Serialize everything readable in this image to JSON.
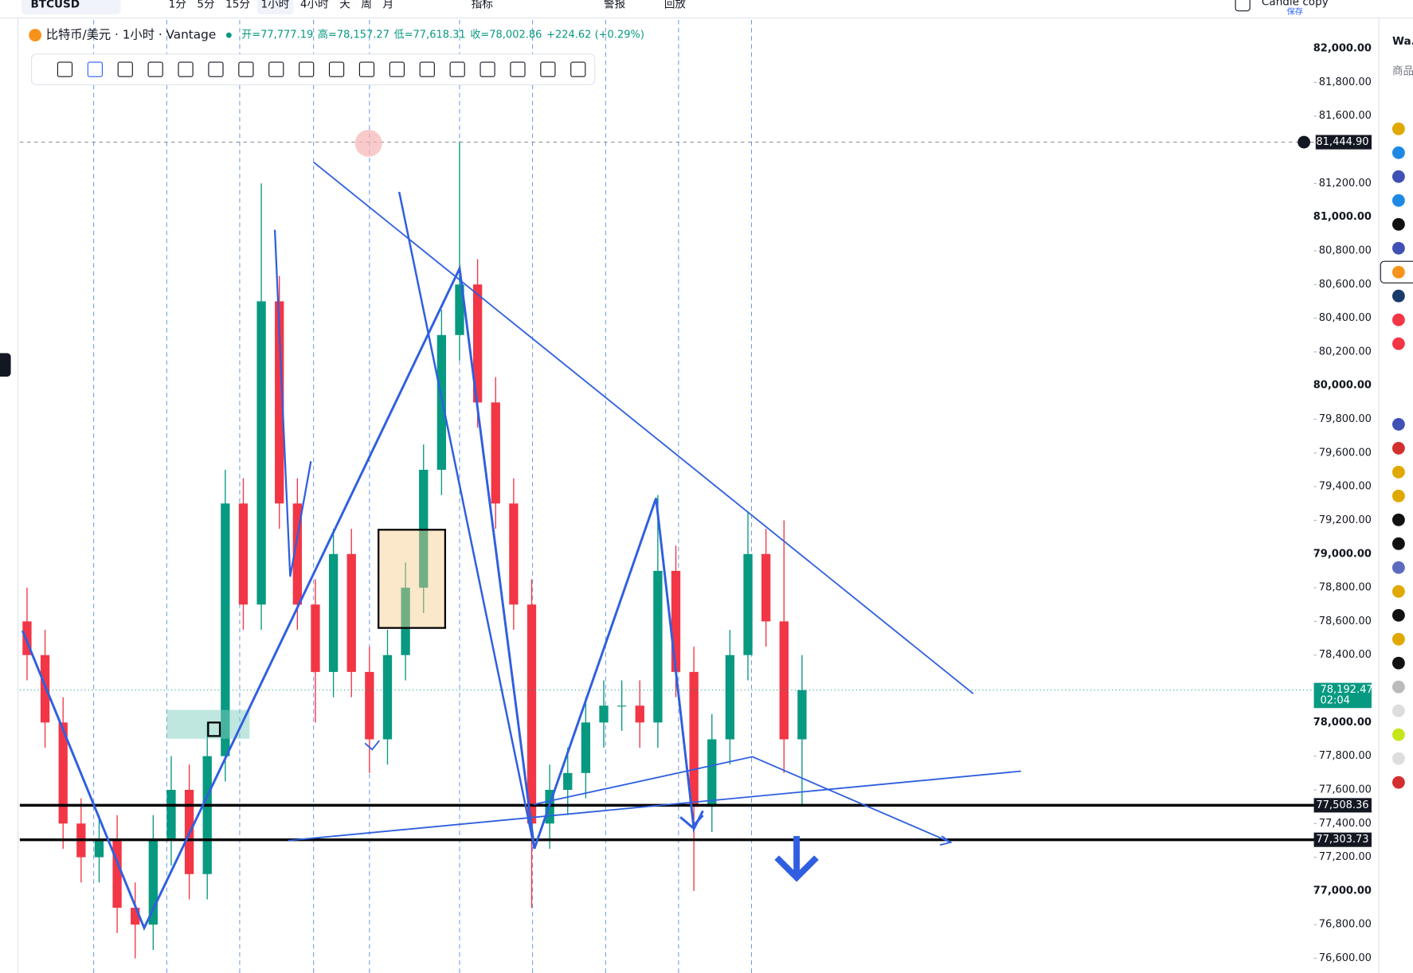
{
  "toolbar": {
    "symbol": "BTCUSD",
    "intervals": [
      "1分",
      "5分",
      "15分",
      "1小时",
      "4小时",
      "天",
      "周",
      "月"
    ],
    "indicators": "指标",
    "alerts": "警报",
    "replay": "回放",
    "layout": "Candle copy",
    "save": "保存"
  },
  "legend": {
    "title": "比特币/美元 · 1小时 · Vantage",
    "fields": [
      "开=77,777.19",
      "高=78,157.27",
      "低=77,618.31",
      "收=78,002.86"
    ],
    "change": "+224.62 (+0.29%)"
  },
  "watchlist": {
    "title": "Wa...",
    "header": "商品"
  },
  "chart_data": {
    "type": "candlestick",
    "ylim": [
      76513,
      82171
    ],
    "yticks": [
      {
        "value": 76600,
        "label": "76,600.00"
      },
      {
        "value": 76800,
        "label": "76,800.00"
      },
      {
        "value": 77000,
        "label": "77,000.00"
      },
      {
        "value": 77200,
        "label": "77,200.00"
      },
      {
        "value": 77400,
        "label": "77,400.00"
      },
      {
        "value": 77600,
        "label": "77,600.00"
      },
      {
        "value": 77800,
        "label": "77,800.00"
      },
      {
        "value": 78000,
        "label": "78,000.00"
      },
      {
        "value": 78400,
        "label": "78,400.00"
      },
      {
        "value": 78600,
        "label": "78,600.00"
      },
      {
        "value": 78800,
        "label": "78,800.00"
      },
      {
        "value": 79000,
        "label": "79,000.00"
      },
      {
        "value": 79200,
        "label": "79,200.00"
      },
      {
        "value": 79400,
        "label": "79,400.00"
      },
      {
        "value": 79600,
        "label": "79,600.00"
      },
      {
        "value": 79800,
        "label": "79,800.00"
      },
      {
        "value": 80000,
        "label": "80,000.00"
      },
      {
        "value": 80200,
        "label": "80,200.00"
      },
      {
        "value": 80400,
        "label": "80,400.00"
      },
      {
        "value": 80600,
        "label": "80,600.00"
      },
      {
        "value": 80800,
        "label": "80,800.00"
      },
      {
        "value": 81000,
        "label": "81,000.00"
      },
      {
        "value": 81200,
        "label": "81,200.00"
      },
      {
        "value": 81600,
        "label": "81,600.00"
      },
      {
        "value": 81800,
        "label": "81,800.00"
      },
      {
        "value": 82000,
        "label": "82,000.00"
      }
    ],
    "up_color": "#089981",
    "down_color": "#f23645",
    "open": [
      78600,
      78400,
      78000,
      77400,
      77200,
      77300,
      76900,
      76800,
      77300,
      77600,
      77100,
      77800,
      79300,
      78700,
      80500,
      79300,
      78700,
      78300,
      79000,
      78300,
      77900,
      78400,
      78800,
      79500,
      80300,
      80600,
      79900,
      79300,
      78700,
      77400,
      77600,
      77700,
      78000,
      78100,
      78100,
      78000,
      78900,
      78300,
      77500,
      77900,
      78400,
      79000,
      78600,
      77900
    ],
    "high": [
      78800,
      78550,
      78150,
      77550,
      77450,
      77450,
      77050,
      77450,
      77800,
      77750,
      78000,
      79500,
      79450,
      81200,
      80650,
      79450,
      78850,
      79150,
      79150,
      78450,
      78550,
      78950,
      79650,
      80450,
      81450,
      80750,
      80050,
      79450,
      78850,
      77750,
      77850,
      78150,
      78250,
      78250,
      78250,
      79350,
      79050,
      78450,
      78050,
      78550,
      79250,
      79150,
      79200,
      78400
    ],
    "low": [
      78250,
      77850,
      77250,
      77050,
      77050,
      76750,
      76600,
      76650,
      77150,
      76950,
      76950,
      77650,
      78550,
      78550,
      79150,
      78550,
      78000,
      78150,
      78150,
      77700,
      77750,
      78250,
      78650,
      79350,
      80150,
      79750,
      79150,
      78550,
      76900,
      77250,
      77450,
      77550,
      77850,
      77950,
      77850,
      77850,
      78150,
      77000,
      77350,
      77750,
      78250,
      78450,
      77700,
      77500
    ],
    "close": [
      78400,
      78000,
      77400,
      77200,
      77300,
      76900,
      76800,
      77300,
      77600,
      77100,
      77800,
      79300,
      78700,
      80500,
      79300,
      78700,
      78300,
      79000,
      78300,
      77900,
      78400,
      78800,
      79500,
      80300,
      80600,
      79900,
      79300,
      78700,
      77400,
      77600,
      77700,
      78000,
      78100,
      78100,
      78000,
      78900,
      78300,
      77500,
      77900,
      78400,
      79000,
      78600,
      77900,
      78192.47
    ],
    "crosshair": {
      "value": 81444.9,
      "label": "81,444.90"
    },
    "last_price": {
      "value": 78192.47,
      "label": "78,192.47",
      "countdown": "02:04"
    },
    "price_lines": [
      {
        "value": 77508.36,
        "label": "77,508.36"
      },
      {
        "value": 77303.73,
        "label": "77,303.73"
      }
    ]
  }
}
